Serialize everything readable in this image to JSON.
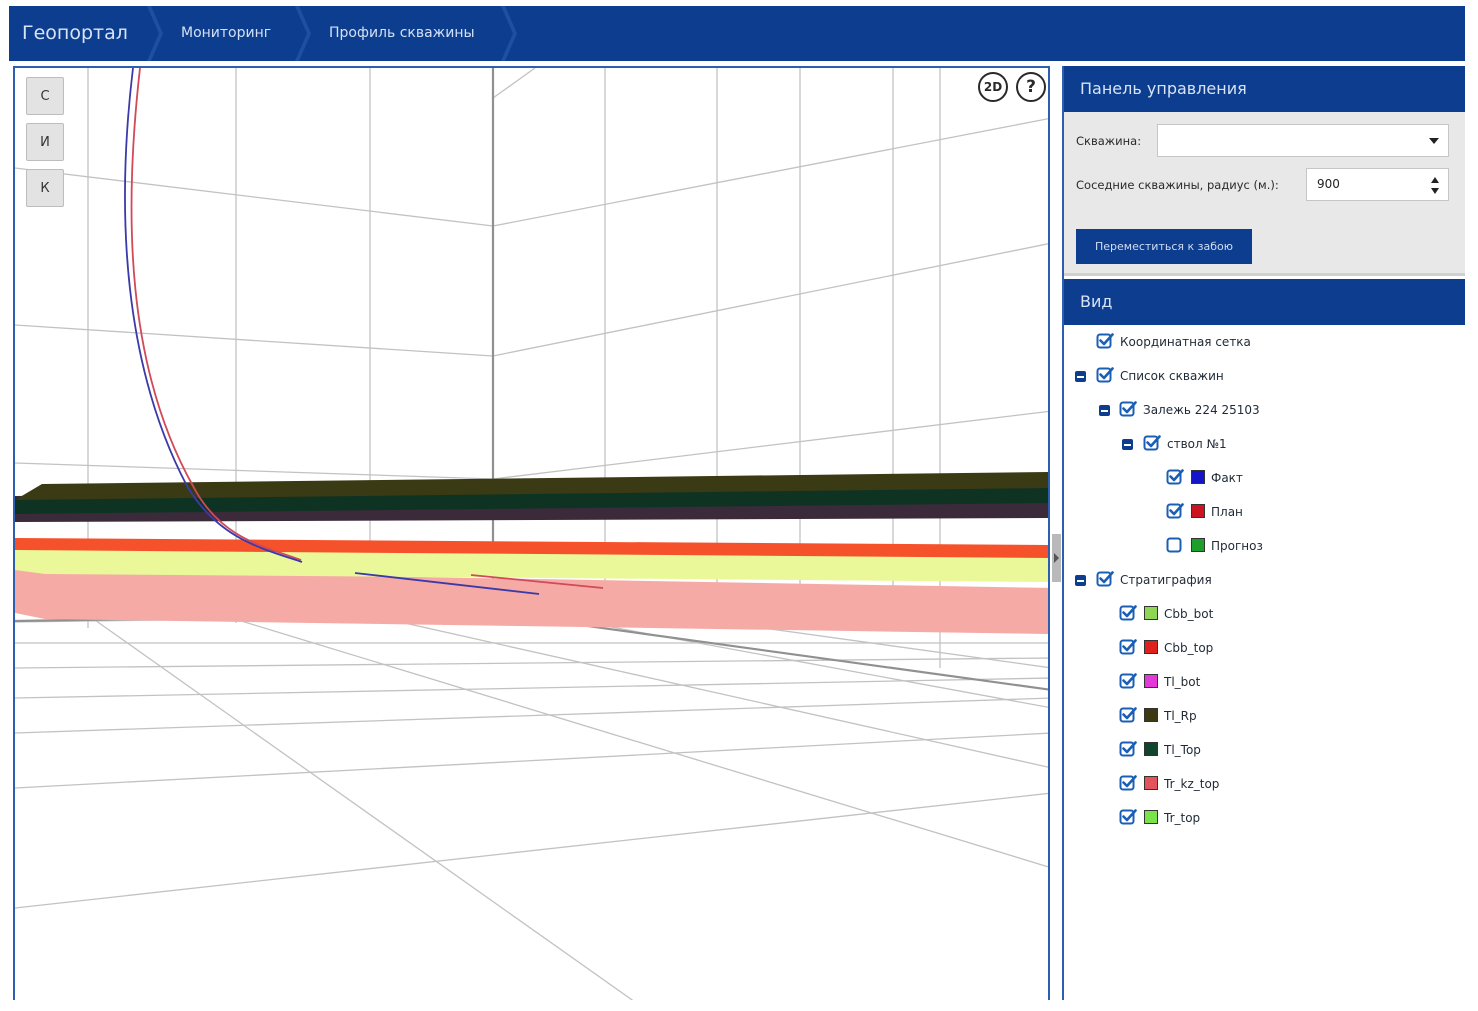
{
  "breadcrumb": [
    "Геопортал",
    "Мониторинг",
    "Профиль скважины"
  ],
  "viewport": {
    "view_buttons": [
      "С",
      "И",
      "К"
    ],
    "mode_button": "2D",
    "help_button": "?"
  },
  "control_panel": {
    "title": "Панель управления",
    "well_label": "Скважина:",
    "well_value": "",
    "radius_label": "Соседние скважины, радиус (м.):",
    "radius_value": "900",
    "goto_button": "Переместиться к забою"
  },
  "view_panel": {
    "title": "Вид",
    "tree": [
      {
        "label": "Координатная сетка",
        "checked": true
      },
      {
        "label": "Список скважин",
        "checked": true
      },
      {
        "label": "Залежь 224 25103",
        "checked": true
      },
      {
        "label": "ствол №1",
        "checked": true
      },
      {
        "label": "Факт",
        "checked": true,
        "color": "#1414c8"
      },
      {
        "label": "План",
        "checked": true,
        "color": "#cc1420"
      },
      {
        "label": "Прогноз",
        "checked": false,
        "color": "#1e9e2c"
      },
      {
        "label": "Стратиграфия",
        "checked": true
      },
      {
        "label": "Cbb_bot",
        "checked": true,
        "color": "#8ed654"
      },
      {
        "label": "Cbb_top",
        "checked": true,
        "color": "#e0201c"
      },
      {
        "label": "Tl_bot",
        "checked": true,
        "color": "#e23ad6"
      },
      {
        "label": "Tl_Rp",
        "checked": true,
        "color": "#3d3a12"
      },
      {
        "label": "Tl_Top",
        "checked": true,
        "color": "#10442c"
      },
      {
        "label": "Tr_kz_top",
        "checked": true,
        "color": "#e4525a"
      },
      {
        "label": "Tr_top",
        "checked": true,
        "color": "#7ce24a"
      }
    ]
  },
  "colors": {
    "accent": "#0d3d8e",
    "checkbox": "#1b5fb4",
    "layer_tl_top": "#0f3322",
    "layer_tl_rp": "#3a3a14",
    "layer_red": "#f5522c",
    "layer_yellow": "#eaf89a",
    "layer_pink": "#f6aaa6",
    "well_fact": "#3a3aa8",
    "well_plan": "#d04a58"
  }
}
